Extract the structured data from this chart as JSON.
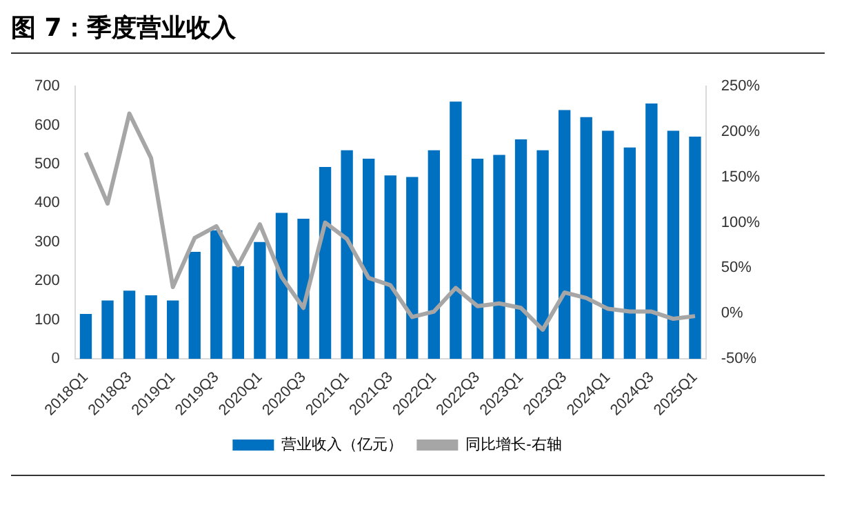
{
  "chart_data": {
    "type": "bar",
    "title": "图 7：季度营业收入",
    "categories": [
      "2018Q1",
      null,
      "2018Q3",
      null,
      "2019Q1",
      null,
      "2019Q3",
      null,
      "2020Q1",
      null,
      "2020Q3",
      null,
      "2021Q1",
      null,
      "2021Q3",
      null,
      "2022Q1",
      null,
      "2022Q3",
      null,
      "2023Q1",
      null,
      "2023Q3",
      null,
      "2024Q1",
      null,
      "2024Q3",
      null,
      "2025Q1"
    ],
    "series": [
      {
        "name": "营业收入（亿元）",
        "color": "#0070c0",
        "values": [
          115,
          150,
          175,
          163,
          150,
          275,
          330,
          238,
          300,
          375,
          360,
          493,
          536,
          514,
          471,
          467,
          536,
          661,
          514,
          524,
          564,
          536,
          639,
          621,
          586,
          543,
          656,
          586,
          571
        ]
      },
      {
        "name": "同比增长-右轴",
        "type": "line",
        "axis": "y2",
        "color": "#a6a6a6",
        "values": [
          177,
          121,
          220,
          171,
          29,
          83,
          96,
          53,
          98,
          40,
          6,
          100,
          82,
          39,
          31,
          -4,
          2,
          28,
          8,
          11,
          6,
          -18,
          23,
          17,
          5,
          2,
          2,
          -6,
          -3
        ]
      }
    ],
    "ylim": [
      0,
      700
    ],
    "yticks": [
      0,
      100,
      200,
      300,
      400,
      500,
      600,
      700
    ],
    "y2lim": [
      -50,
      250
    ],
    "y2ticks": [
      {
        "value": -50,
        "label": "-50%"
      },
      {
        "value": 0,
        "label": "0%"
      },
      {
        "value": 50,
        "label": "50%"
      },
      {
        "value": 100,
        "label": "100%"
      },
      {
        "value": 150,
        "label": "150%"
      },
      {
        "value": 200,
        "label": "200%"
      },
      {
        "value": 250,
        "label": "250%"
      }
    ],
    "grid": false,
    "legend": "bottom",
    "marker": "none",
    "line_style": "solid"
  }
}
